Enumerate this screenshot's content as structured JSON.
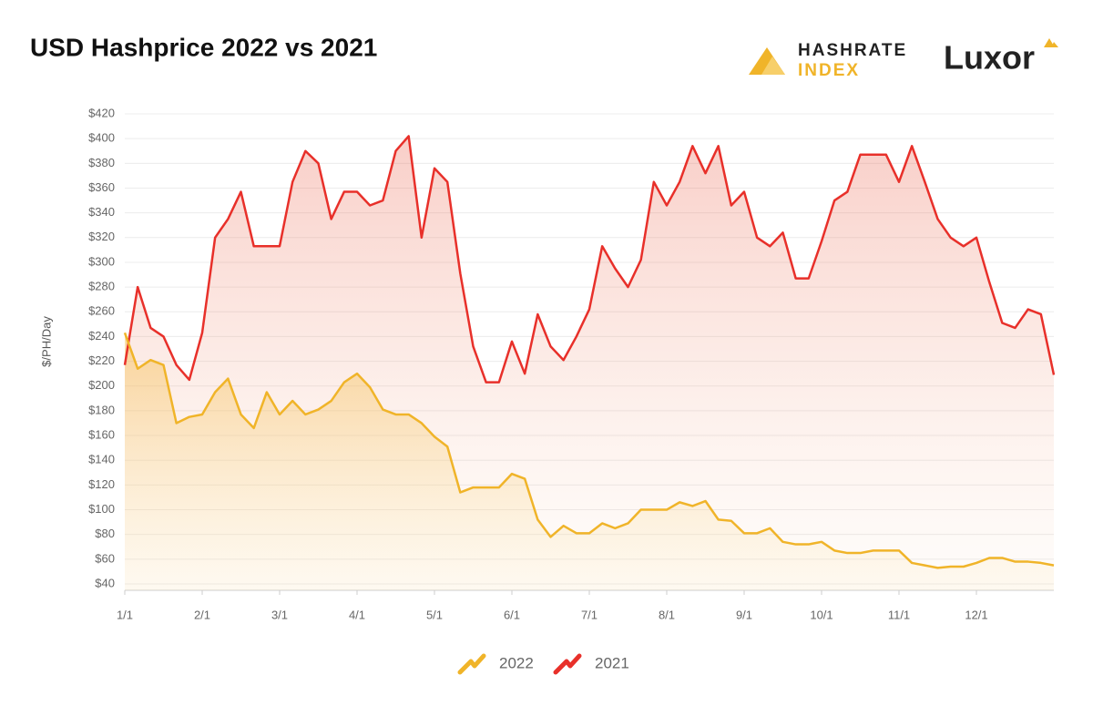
{
  "brand": {
    "hashrate": "HASHRATE",
    "index": "INDEX",
    "luxor": "Luxor"
  },
  "chart_data": {
    "type": "line",
    "title": "USD Hashprice 2022 vs 2021",
    "y_label": "$/PH/Day",
    "x": [
      "1/1",
      null,
      null,
      null,
      null,
      null,
      "2/1",
      null,
      null,
      null,
      null,
      null,
      "3/1",
      null,
      null,
      null,
      null,
      null,
      "4/1",
      null,
      null,
      null,
      null,
      null,
      "5/1",
      null,
      null,
      null,
      null,
      null,
      "6/1",
      null,
      null,
      null,
      null,
      null,
      "7/1",
      null,
      null,
      null,
      null,
      null,
      "8/1",
      null,
      null,
      null,
      null,
      null,
      "9/1",
      null,
      null,
      null,
      null,
      null,
      "10/1",
      null,
      null,
      null,
      null,
      null,
      "11/1",
      null,
      null,
      null,
      null,
      null,
      "12/1",
      null,
      null,
      null,
      null,
      null,
      null
    ],
    "ylim": [
      40,
      420
    ],
    "yticks": [
      {
        "value": 40,
        "label": "$40"
      },
      {
        "value": 60,
        "label": "$60"
      },
      {
        "value": 80,
        "label": "$80"
      },
      {
        "value": 100,
        "label": "$100"
      },
      {
        "value": 120,
        "label": "$120"
      },
      {
        "value": 140,
        "label": "$140"
      },
      {
        "value": 160,
        "label": "$160"
      },
      {
        "value": 180,
        "label": "$180"
      },
      {
        "value": 200,
        "label": "$200"
      },
      {
        "value": 220,
        "label": "$220"
      },
      {
        "value": 240,
        "label": "$240"
      },
      {
        "value": 260,
        "label": "$260"
      },
      {
        "value": 280,
        "label": "$280"
      },
      {
        "value": 300,
        "label": "$300"
      },
      {
        "value": 320,
        "label": "$320"
      },
      {
        "value": 340,
        "label": "$340"
      },
      {
        "value": 360,
        "label": "$360"
      },
      {
        "value": 380,
        "label": "$380"
      },
      {
        "value": 400,
        "label": "$400"
      },
      {
        "value": 420,
        "label": "$420"
      }
    ],
    "grid": true,
    "legend": "bottom",
    "series": [
      {
        "name": "2022",
        "color": "#f0b429",
        "values": [
          243,
          214,
          221,
          217,
          170,
          175,
          177,
          195,
          206,
          177,
          166,
          195,
          177,
          188,
          177,
          181,
          188,
          203,
          210,
          199,
          181,
          177,
          177,
          170,
          159,
          151,
          114,
          118,
          118,
          118,
          129,
          125,
          92,
          78,
          87,
          81,
          81,
          89,
          85,
          89,
          100,
          100,
          100,
          106,
          103,
          107,
          92,
          91,
          81,
          81,
          85,
          74,
          72,
          72,
          74,
          67,
          65,
          65,
          67,
          67,
          67,
          57,
          55,
          53,
          54,
          54,
          57,
          61,
          61,
          58,
          58,
          57,
          55
        ]
      },
      {
        "name": "2021",
        "color": "#e8302a",
        "values": [
          217,
          280,
          247,
          240,
          217,
          205,
          243,
          320,
          335,
          357,
          313,
          313,
          313,
          365,
          390,
          380,
          335,
          357,
          357,
          346,
          350,
          390,
          402,
          320,
          376,
          365,
          291,
          232,
          203,
          203,
          236,
          210,
          258,
          232,
          221,
          240,
          262,
          313,
          295,
          280,
          302,
          365,
          346,
          365,
          394,
          372,
          394,
          346,
          357,
          320,
          313,
          324,
          287,
          287,
          317,
          350,
          357,
          387,
          387,
          387,
          365,
          394,
          365,
          335,
          320,
          313,
          320,
          284,
          251,
          247,
          262,
          258,
          209
        ]
      }
    ]
  }
}
